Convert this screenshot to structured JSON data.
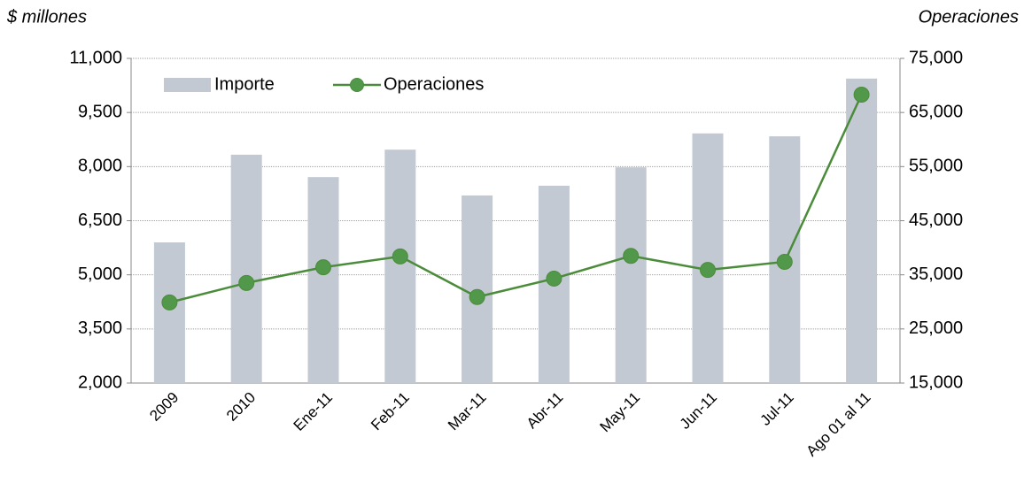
{
  "chart_data": {
    "type": "bar",
    "ylabel": "$ millones",
    "y2label": "Operaciones",
    "categories": [
      "2009",
      "2010",
      "Ene-11",
      "Feb-11",
      "Mar-11",
      "Abr-11",
      "May-11",
      "Jun-11",
      "Jul-11",
      "Ago 01 al 11"
    ],
    "series": [
      {
        "name": "Importe",
        "type": "bar",
        "color": "#c3c9d3",
        "axis": "y",
        "values": [
          5900,
          8330,
          7710,
          8470,
          7200,
          7470,
          7980,
          8920,
          8840,
          10440
        ]
      },
      {
        "name": "Operaciones",
        "type": "line",
        "color": "#4a8c3a",
        "axis": "y2",
        "values": [
          29900,
          33500,
          36400,
          38400,
          30900,
          34300,
          38500,
          35900,
          37400,
          68300
        ]
      }
    ],
    "ylim": [
      2000,
      11000
    ],
    "yticks": [
      {
        "value": 2000,
        "label": "2,000"
      },
      {
        "value": 3500,
        "label": "3,500"
      },
      {
        "value": 5000,
        "label": "5,000"
      },
      {
        "value": 6500,
        "label": "6,500"
      },
      {
        "value": 8000,
        "label": "8,000"
      },
      {
        "value": 9500,
        "label": "9,500"
      },
      {
        "value": 11000,
        "label": "11,000"
      }
    ],
    "y2lim": [
      15000,
      75000
    ],
    "y2ticks": [
      {
        "value": 15000,
        "label": "15,000"
      },
      {
        "value": 25000,
        "label": "25,000"
      },
      {
        "value": 35000,
        "label": "35,000"
      },
      {
        "value": 45000,
        "label": "45,000"
      },
      {
        "value": 55000,
        "label": "55,000"
      },
      {
        "value": 65000,
        "label": "65,000"
      },
      {
        "value": 75000,
        "label": "75,000"
      }
    ],
    "grid": true,
    "legend": "top-left"
  }
}
